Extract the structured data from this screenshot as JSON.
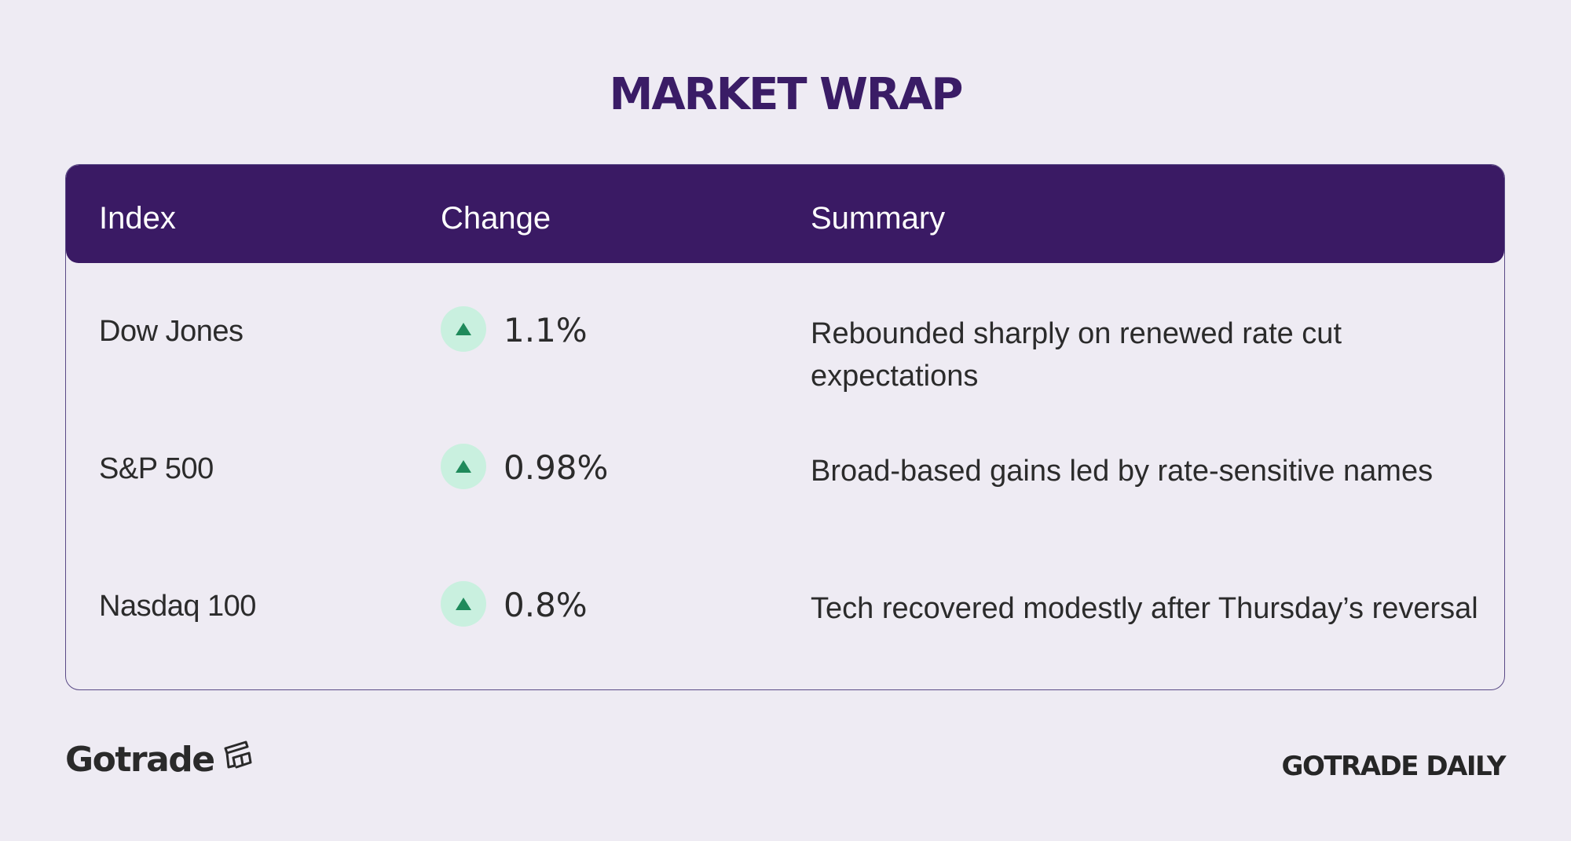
{
  "page": {
    "title": "MARKET WRAP"
  },
  "table": {
    "headers": {
      "index": "Index",
      "change": "Change",
      "summary": "Summary"
    },
    "rows": [
      {
        "index": "Dow Jones",
        "direction": "up",
        "change": "1.1%",
        "summary": "Rebounded sharply on renewed rate cut expectations"
      },
      {
        "index": "S&P 500",
        "direction": "up",
        "change": "0.98%",
        "summary": "Broad-based gains led by rate-sensitive names"
      },
      {
        "index": "Nasdaq 100",
        "direction": "up",
        "change": "0.8%",
        "summary": "Tech recovered modestly after Thursday’s reversal"
      }
    ]
  },
  "footer": {
    "brand": "Gotrade",
    "brand_icon": "gotrade-logo-icon",
    "publication": "GOTRADE DAILY"
  },
  "colors": {
    "background": "#eeebf3",
    "header_bg": "#3a1a64",
    "title": "#3a1c66",
    "up_badge_bg": "#c9f0df",
    "up_arrow": "#1f8a5b"
  }
}
